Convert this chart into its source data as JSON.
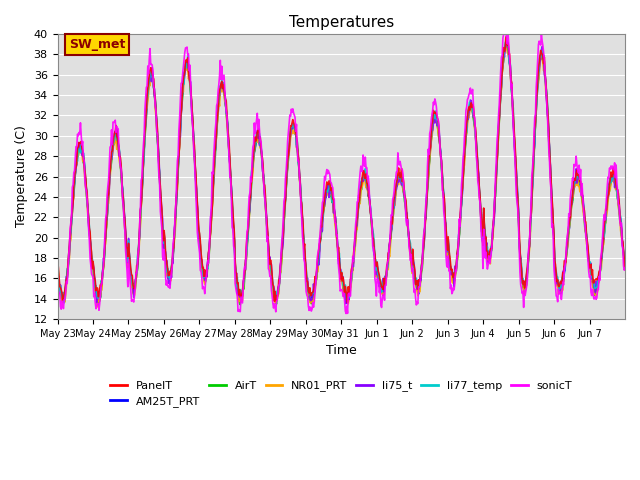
{
  "title": "Temperatures",
  "xlabel": "Time",
  "ylabel": "Temperature (C)",
  "ylim": [
    12,
    40
  ],
  "yticks": [
    12,
    14,
    16,
    18,
    20,
    22,
    24,
    26,
    28,
    30,
    32,
    34,
    36,
    38,
    40
  ],
  "x_tick_labels": [
    "May 23",
    "May 24",
    "May 25",
    "May 26",
    "May 27",
    "May 28",
    "May 29",
    "May 30",
    "May 31",
    "Jun 1",
    "Jun 2",
    "Jun 3",
    "Jun 4",
    "Jun 5",
    "Jun 6",
    "Jun 7"
  ],
  "series": {
    "PanelT": {
      "color": "#FF0000",
      "lw": 1.2
    },
    "AM25T_PRT": {
      "color": "#0000FF",
      "lw": 1.2
    },
    "AirT": {
      "color": "#00CC00",
      "lw": 1.2
    },
    "NR01_PRT": {
      "color": "#FFA500",
      "lw": 1.2
    },
    "li75_t": {
      "color": "#8800FF",
      "lw": 1.2
    },
    "li77_temp": {
      "color": "#00CCCC",
      "lw": 1.2
    },
    "sonicT": {
      "color": "#FF00FF",
      "lw": 1.2
    }
  },
  "plot_order": [
    "AM25T_PRT",
    "AirT",
    "NR01_PRT",
    "li75_t",
    "li77_temp",
    "PanelT",
    "sonicT"
  ],
  "legend_order": [
    "PanelT",
    "AM25T_PRT",
    "AirT",
    "NR01_PRT",
    "li75_t",
    "li77_temp",
    "sonicT"
  ],
  "annotation_text": "SW_met",
  "annotation_color": "#8B0000",
  "annotation_bg": "#FFD700",
  "background_color": "#E0E0E0",
  "grid_color": "#FFFFFF",
  "title_fontsize": 11,
  "n_days": 16,
  "pts_per_day": 48,
  "day_mins": [
    14,
    14,
    15,
    16,
    16,
    14,
    14,
    14,
    14,
    15,
    15,
    16,
    18,
    15,
    15,
    15
  ],
  "day_maxs": [
    29,
    30,
    36,
    37,
    35,
    30,
    31,
    25,
    26,
    26,
    32,
    33,
    39,
    38,
    26,
    26
  ]
}
